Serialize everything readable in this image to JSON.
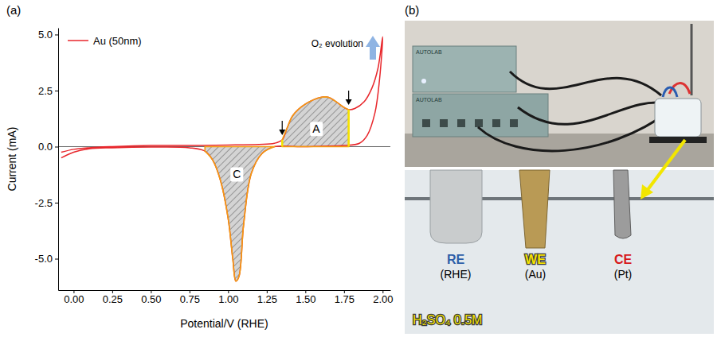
{
  "panels": [
    "(a)",
    "(b)"
  ],
  "chart_data": {
    "type": "line",
    "x_label": "Potential/V (RHE)",
    "y_label": "Current (mA)",
    "x": [
      -0.08,
      0.0,
      0.1,
      0.25,
      0.5,
      0.75,
      1.0,
      1.2,
      1.3,
      1.35,
      1.38,
      1.42,
      1.5,
      1.6,
      1.65,
      1.7,
      1.75,
      1.78,
      1.82,
      1.88,
      1.93,
      1.97,
      2.0,
      1.98,
      1.95,
      1.9,
      1.85,
      1.75,
      1.6,
      1.45,
      1.3,
      1.22,
      1.15,
      1.1,
      1.07,
      1.05,
      1.03,
      1.0,
      0.95,
      0.9,
      0.85,
      0.75,
      0.5,
      0.25,
      0.1,
      0.0,
      -0.08
    ],
    "series": [
      {
        "name": "Au (50nm)",
        "color": "#e8262b",
        "values": [
          -0.25,
          -0.12,
          -0.05,
          0.0,
          0.05,
          0.05,
          0.07,
          0.1,
          0.15,
          0.3,
          0.8,
          1.4,
          1.9,
          2.2,
          2.2,
          2.0,
          1.75,
          1.65,
          1.7,
          2.0,
          2.6,
          3.5,
          4.9,
          3.0,
          1.5,
          0.5,
          0.15,
          0.05,
          0.02,
          0.0,
          0.0,
          -0.3,
          -1.2,
          -3.5,
          -5.8,
          -6.0,
          -5.0,
          -3.2,
          -1.5,
          -0.6,
          -0.2,
          -0.05,
          -0.02,
          -0.05,
          -0.1,
          -0.25,
          -0.5
        ]
      }
    ],
    "xlim": [
      -0.1,
      2.05
    ],
    "ylim": [
      -6.4,
      5.3
    ],
    "xticks": [
      {
        "value": 0,
        "label": "0.00"
      },
      {
        "value": 0.25,
        "label": "0.25"
      },
      {
        "value": 0.5,
        "label": "0.50"
      },
      {
        "value": 0.75,
        "label": "0.75"
      },
      {
        "value": 1,
        "label": "1.00"
      },
      {
        "value": 1.25,
        "label": "1.25"
      },
      {
        "value": 1.5,
        "label": "1.50"
      },
      {
        "value": 1.75,
        "label": "1.75"
      },
      {
        "value": 2,
        "label": "2.00"
      }
    ],
    "yticks": [
      {
        "value": -5,
        "label": "-5.0"
      },
      {
        "value": -2.5,
        "label": "-2.5"
      },
      {
        "value": 0,
        "label": "0.0"
      },
      {
        "value": 2.5,
        "label": "2.5"
      },
      {
        "value": 5,
        "label": "5.0"
      }
    ],
    "legend": "upper left",
    "regions": [
      {
        "label": "A",
        "x_range": [
          1.35,
          1.78
        ]
      },
      {
        "label": "C",
        "x_range": [
          0.8,
          1.3
        ]
      }
    ],
    "annotations": [
      "O₂ evolution"
    ]
  },
  "photo": {
    "top": {
      "devices": [
        "AUTOLAB",
        "AUTOLAB"
      ]
    },
    "bottom": {
      "electrodes": [
        {
          "role": "RE",
          "name": "(RHE)"
        },
        {
          "role": "WE",
          "name": "(Au)"
        },
        {
          "role": "CE",
          "name": "(Pt)"
        }
      ],
      "electrolyte": "H₂SO₄ 0.5M"
    }
  }
}
